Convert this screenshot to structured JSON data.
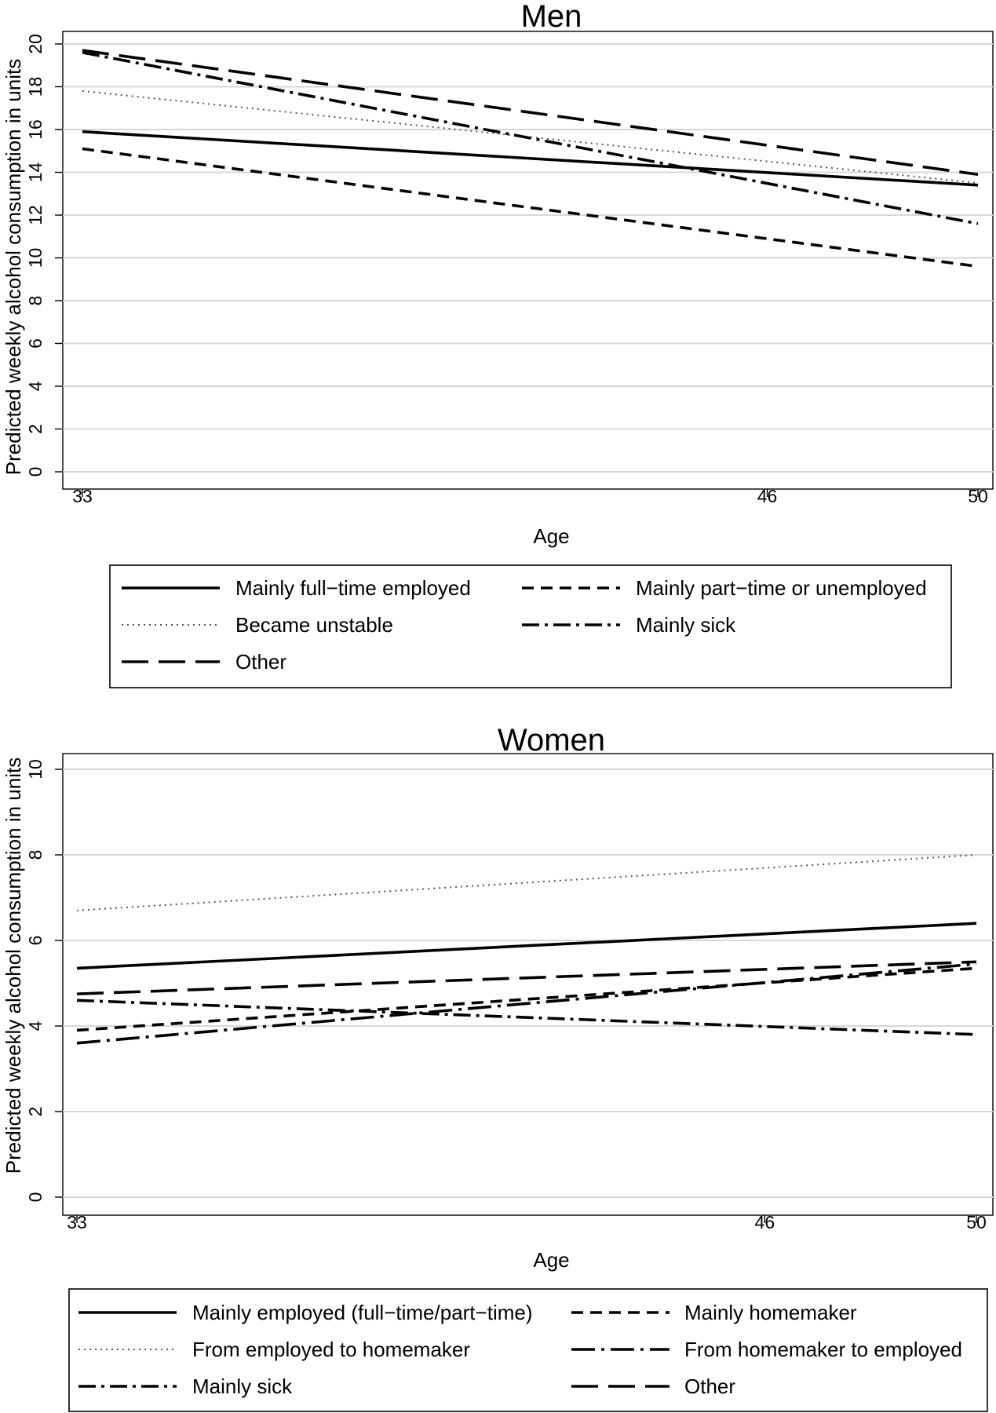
{
  "chart_data": [
    {
      "type": "line",
      "title": "Men",
      "xlabel": "Age",
      "ylabel": "Predicted weekly alcohol consumption in units",
      "x": [
        33,
        50
      ],
      "xticks": [
        33,
        46,
        50
      ],
      "yticks": [
        0,
        2,
        4,
        6,
        8,
        10,
        12,
        14,
        16,
        18,
        20
      ],
      "xlim": [
        33,
        50
      ],
      "ylim": [
        0,
        20
      ],
      "grid": true,
      "legend_position": "bottom",
      "series": [
        {
          "name": "Mainly full−time employed",
          "style": "solid",
          "values": [
            15.9,
            13.4
          ]
        },
        {
          "name": "Mainly part−time or unemployed",
          "style": "dash",
          "values": [
            15.1,
            9.6
          ]
        },
        {
          "name": "Became unstable",
          "style": "dot",
          "values": [
            17.8,
            13.5
          ]
        },
        {
          "name": "Mainly sick",
          "style": "dashdot",
          "values": [
            19.6,
            11.6
          ]
        },
        {
          "name": "Other",
          "style": "longdash",
          "values": [
            19.7,
            13.9
          ]
        }
      ]
    },
    {
      "type": "line",
      "title": "Women",
      "xlabel": "Age",
      "ylabel": "Predicted weekly alcohol consumption in units",
      "x": [
        33,
        50
      ],
      "xticks": [
        33,
        46,
        50
      ],
      "yticks": [
        0,
        2,
        4,
        6,
        8,
        10
      ],
      "xlim": [
        33,
        50
      ],
      "ylim": [
        0,
        10
      ],
      "grid": true,
      "legend_position": "bottom",
      "series": [
        {
          "name": "Mainly employed (full−time/part−time)",
          "style": "solid",
          "values": [
            5.35,
            6.4
          ]
        },
        {
          "name": "Mainly homemaker",
          "style": "dash",
          "values": [
            3.9,
            5.35
          ]
        },
        {
          "name": "From employed to homemaker",
          "style": "dot",
          "values": [
            6.7,
            8.0
          ]
        },
        {
          "name": "From homemaker to employed",
          "style": "longdashdot",
          "values": [
            3.6,
            5.45
          ]
        },
        {
          "name": "Mainly sick",
          "style": "dashdot",
          "values": [
            4.6,
            3.8
          ]
        },
        {
          "name": "Other",
          "style": "longdash",
          "values": [
            4.75,
            5.5
          ]
        }
      ]
    }
  ]
}
